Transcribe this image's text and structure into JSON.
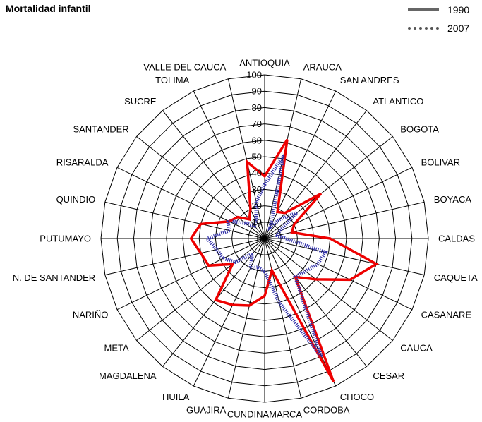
{
  "colors": {
    "s1990": "#ee0000",
    "s2007": "#2f2fa8",
    "grid": "#000000"
  },
  "chart_data": {
    "type": "radar",
    "title": "Mortalidad infantil",
    "categories": [
      "ANTIOQUIA",
      "ARAUCA",
      "SAN ANDRES",
      "ATLANTICO",
      "BOGOTA",
      "BOLIVAR",
      "BOYACA",
      "CALDAS",
      "CAQUETA",
      "CASANARE",
      "CAUCA",
      "CESAR",
      "CHOCO",
      "CORDOBA",
      "CUNDINAMARCA",
      "GUAJIRA",
      "HUILA",
      "MAGDALENA",
      "META",
      "NARIÑO",
      "N. DE SANTANDER",
      "PUTUMAYO",
      "QUINDIO",
      "RISARALDA",
      "SANTANDER",
      "SUCRE",
      "TOLIMA",
      "VALLE DEL CAUCA"
    ],
    "series": [
      {
        "name": "1990",
        "values": [
          38,
          62,
          18,
          20,
          44,
          20,
          17,
          40,
          70,
          58,
          40,
          30,
          97,
          20,
          35,
          42,
          45,
          48,
          25,
          38,
          40,
          45,
          40,
          24,
          21,
          15,
          20,
          48
        ]
      },
      {
        "name": "2007",
        "values": [
          33,
          52,
          8,
          15,
          25,
          10,
          8,
          13,
          38,
          36,
          32,
          30,
          80,
          40,
          20,
          18,
          20,
          12,
          23,
          28,
          30,
          35,
          22,
          25,
          15,
          10,
          12,
          23
        ]
      }
    ],
    "ylim": [
      0,
      100
    ],
    "ticks": [
      0,
      10,
      20,
      30,
      40,
      50,
      60,
      70,
      80,
      90,
      100
    ],
    "legend": "top-right",
    "grid": true
  }
}
